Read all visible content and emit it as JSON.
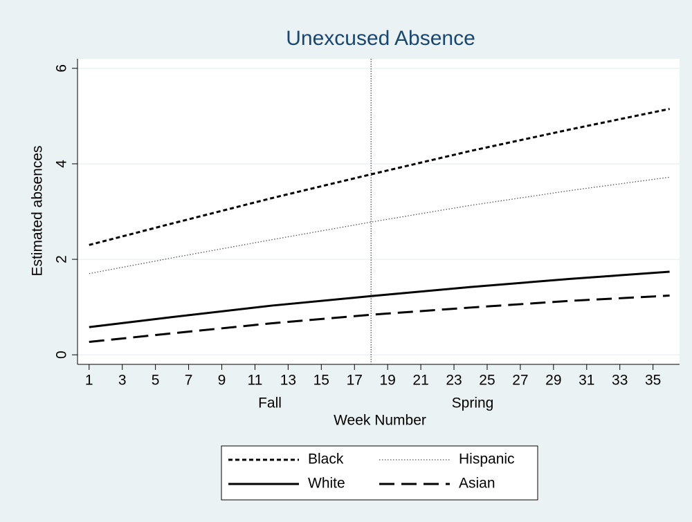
{
  "chart_data": {
    "type": "line",
    "title": "Unexcused Absence",
    "x_label": "Week Number",
    "y_label": "Estimated absences",
    "annotations": [
      "Fall",
      "Spring"
    ],
    "x": [
      1,
      6,
      12,
      18,
      24,
      30,
      36
    ],
    "series": [
      {
        "name": "Black",
        "color": "#000000",
        "linestyle": "dashed",
        "values": [
          2.3,
          2.75,
          3.28,
          3.78,
          4.27,
          4.72,
          5.15
        ]
      },
      {
        "name": "Hispanic",
        "color": "#555555",
        "linestyle": "dotted",
        "values": [
          1.7,
          2.03,
          2.41,
          2.78,
          3.13,
          3.44,
          3.72
        ]
      },
      {
        "name": "White",
        "color": "#000000",
        "linestyle": "solid",
        "values": [
          0.58,
          0.79,
          1.03,
          1.23,
          1.42,
          1.59,
          1.74
        ]
      },
      {
        "name": "Asian",
        "color": "#000000",
        "linestyle": "longdash",
        "values": [
          0.27,
          0.45,
          0.66,
          0.84,
          0.99,
          1.13,
          1.24
        ]
      }
    ],
    "xline": 18,
    "xlim": [
      0.3,
      36.6
    ],
    "ylim": [
      -0.2,
      6.2
    ],
    "xticks": [
      1,
      3,
      5,
      7,
      9,
      11,
      13,
      15,
      17,
      19,
      21,
      23,
      25,
      27,
      29,
      31,
      33,
      35
    ],
    "yticks": [
      0,
      2,
      4,
      6
    ],
    "grid": true
  }
}
